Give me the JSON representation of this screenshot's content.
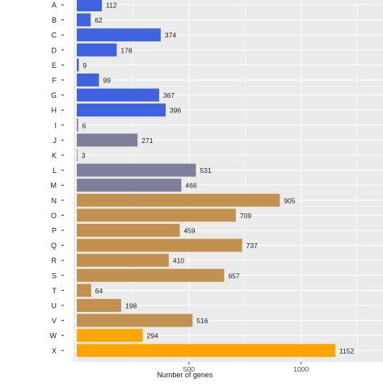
{
  "chart_data": {
    "type": "bar",
    "orientation": "horizontal",
    "categories": [
      "A",
      "B",
      "C",
      "D",
      "E",
      "F",
      "G",
      "H",
      "I",
      "J",
      "K",
      "L",
      "M",
      "N",
      "O",
      "P",
      "Q",
      "R",
      "S",
      "T",
      "U",
      "V",
      "W",
      "X"
    ],
    "values": [
      112,
      62,
      374,
      178,
      9,
      99,
      367,
      396,
      6,
      271,
      3,
      531,
      466,
      905,
      709,
      459,
      737,
      410,
      657,
      64,
      198,
      516,
      294,
      1152
    ],
    "bar_colors": [
      "#3f63e0",
      "#3f63e0",
      "#3f63e0",
      "#3f63e0",
      "#3f63e0",
      "#3f63e0",
      "#3f63e0",
      "#3f63e0",
      "#7e7f9a",
      "#7e7f9a",
      "#7e7f9a",
      "#7e7f9a",
      "#7e7f9a",
      "#c29150",
      "#c29150",
      "#c29150",
      "#c29150",
      "#c29150",
      "#c29150",
      "#c29150",
      "#c29150",
      "#c29150",
      "#ffa500",
      "#ffa500"
    ],
    "xlabel": "Number of genes",
    "ylabel": "",
    "xlim": [
      0,
      1500
    ],
    "xticks": [
      500,
      1000,
      1500
    ],
    "grid": true,
    "background": "#ebebeb",
    "gridline_color": "#ffffff",
    "data_labels": true
  }
}
